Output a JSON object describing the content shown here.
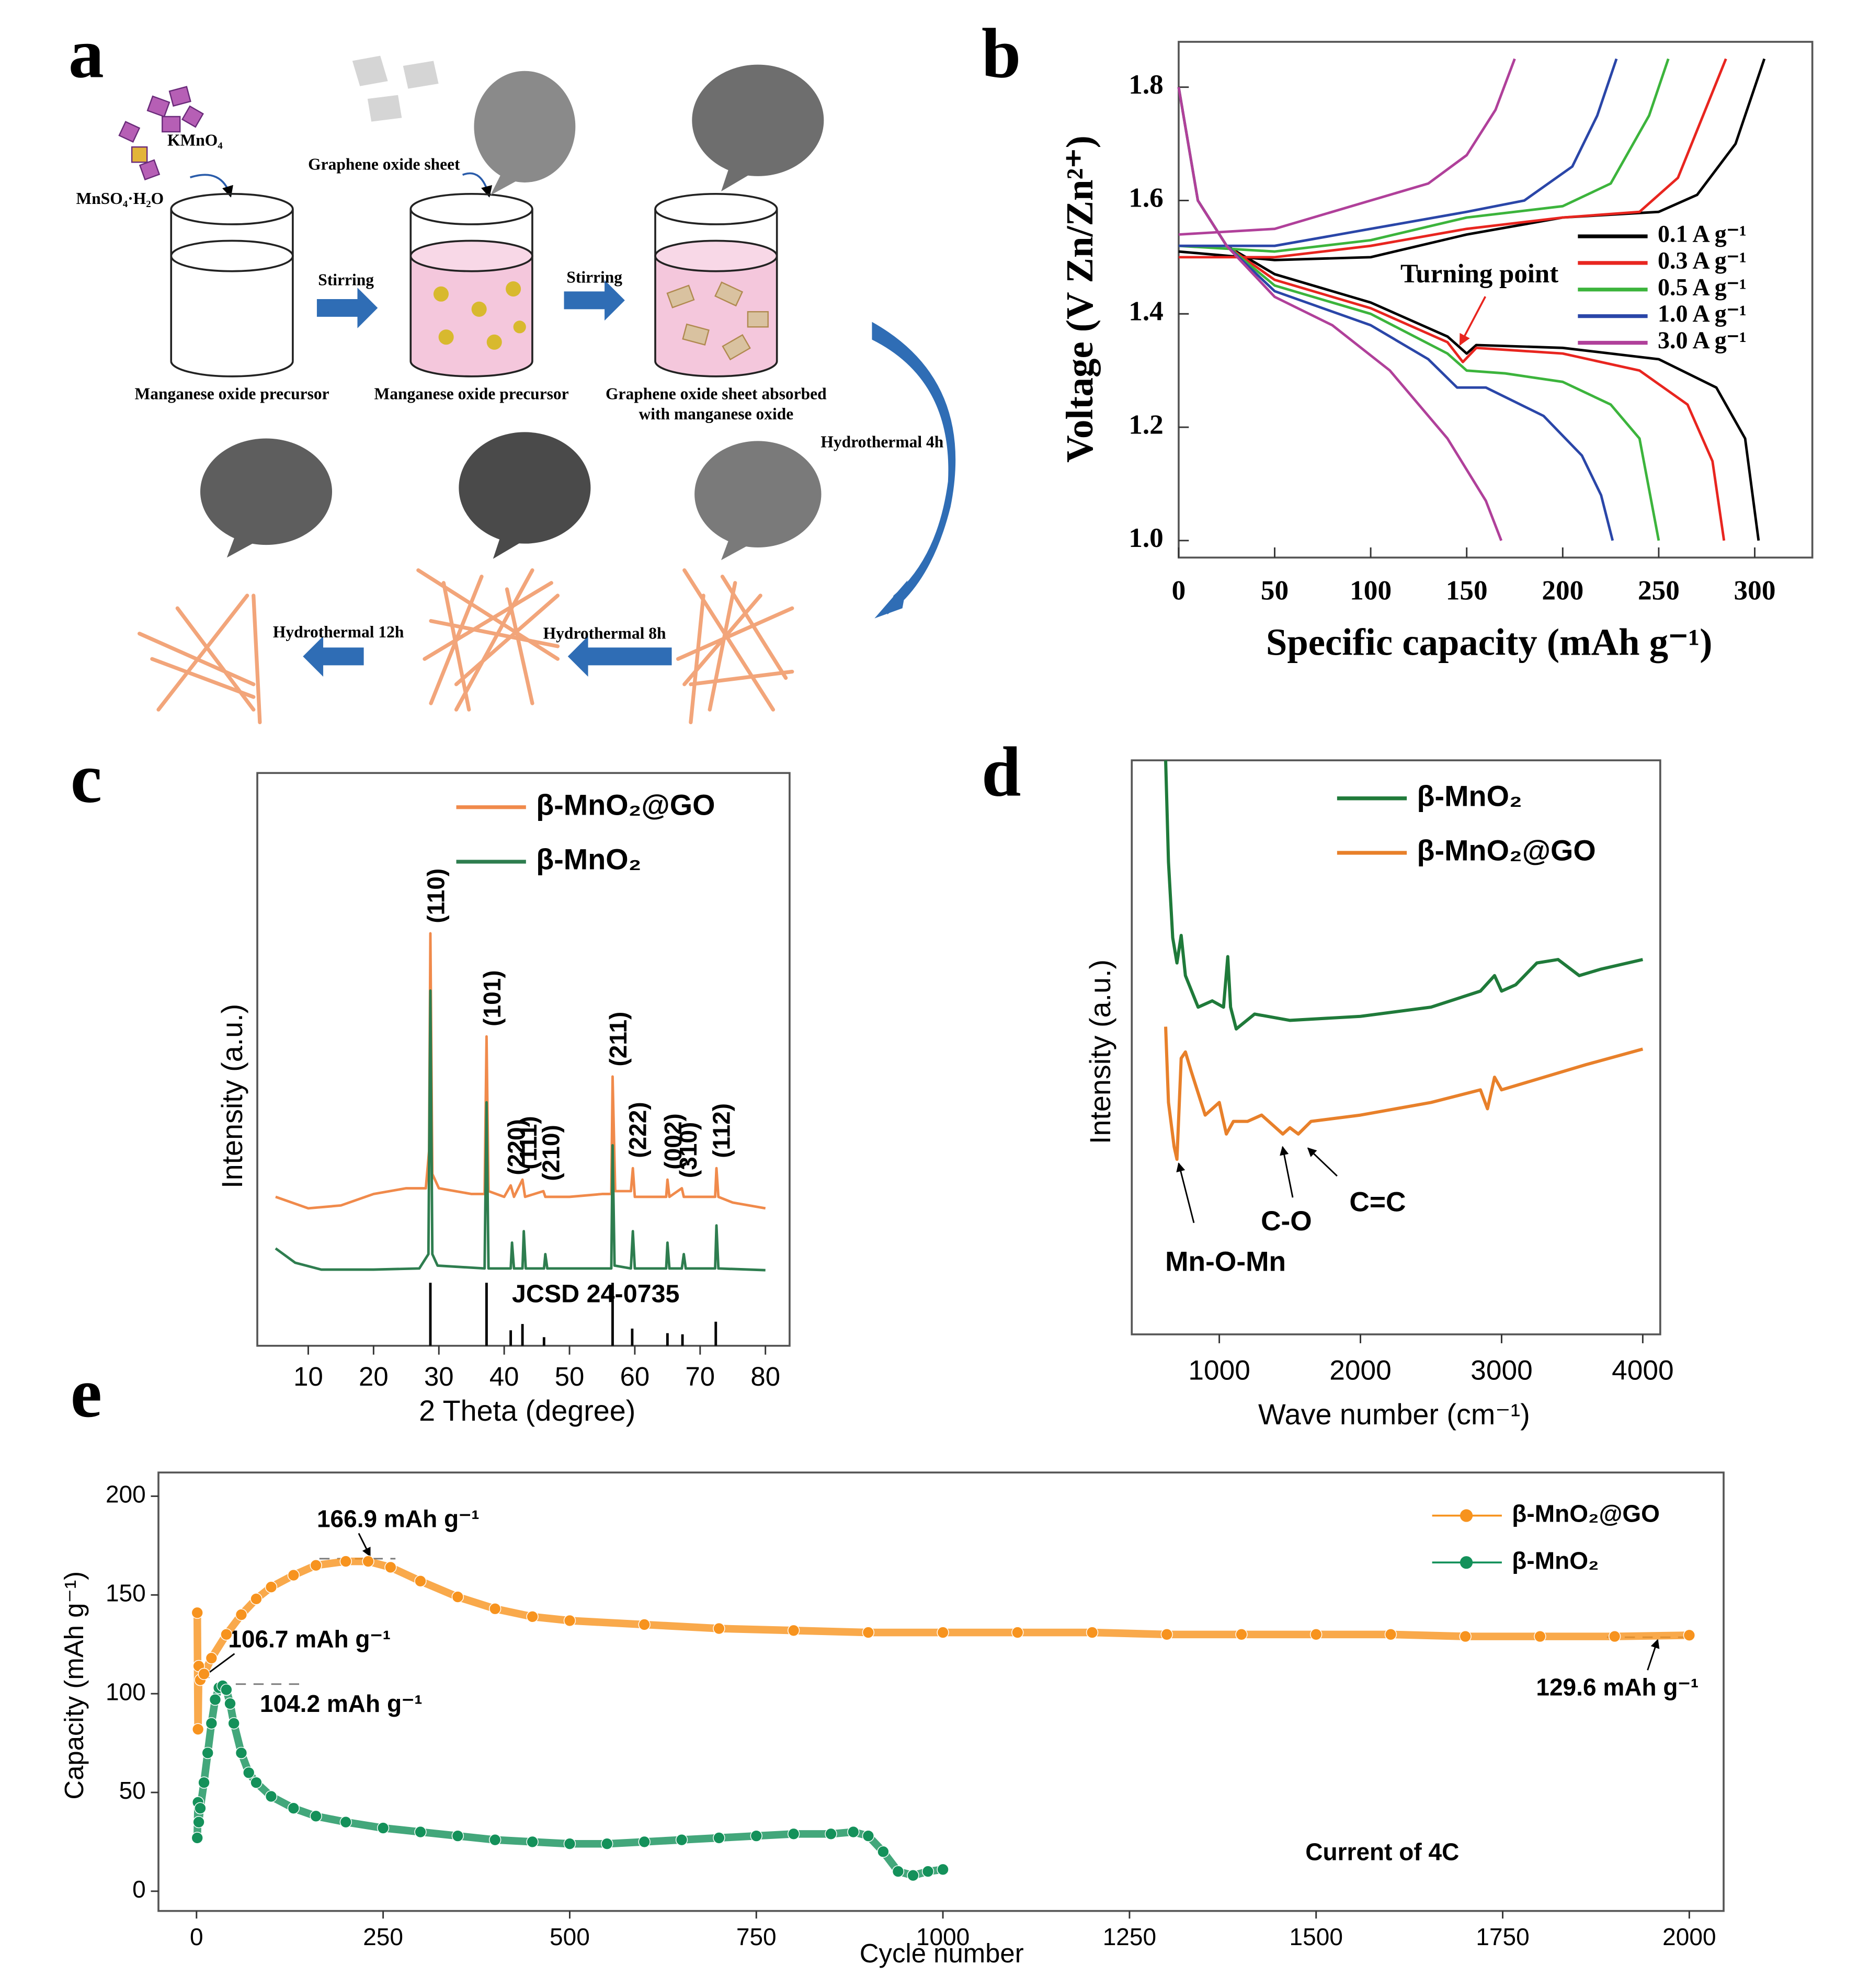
{
  "diagram": {
    "panel_label": "a",
    "reagents": [
      "KMnO₄",
      "MnSO₄·H₂O"
    ],
    "graphene_label": "Graphene oxide sheet",
    "steps": [
      "Stirring",
      "Stirring",
      "Hydrothermal 4h",
      "Hydrothermal 8h",
      "Hydrothermal 12h"
    ],
    "stages": [
      "Manganese oxide precursor",
      "Manganese oxide precursor",
      [
        "Graphene oxide sheet absorbed",
        "with manganese oxide"
      ]
    ]
  },
  "chart_data": [
    {
      "type": "line",
      "panel_label": "b",
      "xlabel": "Specific capacity (mAh g⁻¹)",
      "ylabel": "Voltage (V Zn/Zn²⁺)",
      "annotation": "Turning point",
      "xlim": [
        0,
        330
      ],
      "ylim": [
        0.97,
        1.88
      ],
      "xticks": [
        0,
        50,
        100,
        150,
        200,
        250,
        300
      ],
      "yticks": [
        {
          "value": 1,
          "label": "1.0"
        },
        1.2,
        1.4,
        1.6,
        1.8
      ],
      "legend": "center right",
      "grid": false,
      "series": [
        {
          "name": "0.1 A g⁻¹",
          "color": "#000000",
          "discharge_x": [
            0,
            10,
            25,
            50,
            100,
            140,
            150,
            155,
            200,
            250,
            280,
            295,
            302
          ],
          "discharge_values": [
            1.8,
            1.6,
            1.52,
            1.47,
            1.42,
            1.36,
            1.33,
            1.345,
            1.34,
            1.32,
            1.27,
            1.18,
            1.0
          ],
          "charge_x": [
            0,
            50,
            100,
            150,
            200,
            250,
            270,
            290,
            305
          ],
          "charge_values": [
            1.51,
            1.495,
            1.5,
            1.54,
            1.57,
            1.58,
            1.61,
            1.7,
            1.85
          ]
        },
        {
          "name": "0.3 A g⁻¹",
          "color": "#e8251f",
          "discharge_x": [
            0,
            10,
            25,
            50,
            100,
            140,
            148,
            155,
            200,
            240,
            265,
            278,
            284
          ],
          "discharge_values": [
            1.8,
            1.6,
            1.52,
            1.46,
            1.41,
            1.35,
            1.315,
            1.34,
            1.33,
            1.3,
            1.24,
            1.14,
            1.0
          ],
          "charge_x": [
            0,
            50,
            100,
            150,
            200,
            240,
            260,
            285
          ],
          "charge_values": [
            1.5,
            1.5,
            1.52,
            1.55,
            1.57,
            1.58,
            1.64,
            1.85
          ]
        },
        {
          "name": "0.5 A g⁻¹",
          "color": "#3cb43c",
          "discharge_x": [
            0,
            10,
            25,
            50,
            100,
            140,
            150,
            170,
            200,
            225,
            240,
            250
          ],
          "discharge_values": [
            1.8,
            1.6,
            1.52,
            1.45,
            1.4,
            1.33,
            1.3,
            1.295,
            1.28,
            1.24,
            1.18,
            1.0
          ],
          "charge_x": [
            0,
            50,
            100,
            150,
            200,
            225,
            245,
            255
          ],
          "charge_values": [
            1.52,
            1.51,
            1.53,
            1.57,
            1.59,
            1.63,
            1.75,
            1.85
          ]
        },
        {
          "name": "1.0 A g⁻¹",
          "color": "#2a46a8",
          "discharge_x": [
            0,
            10,
            25,
            50,
            100,
            130,
            145,
            160,
            190,
            210,
            220,
            226
          ],
          "discharge_values": [
            1.8,
            1.6,
            1.52,
            1.44,
            1.38,
            1.32,
            1.27,
            1.27,
            1.22,
            1.15,
            1.08,
            1.0
          ],
          "charge_x": [
            0,
            50,
            100,
            150,
            180,
            205,
            218,
            228
          ],
          "charge_values": [
            1.52,
            1.52,
            1.55,
            1.58,
            1.6,
            1.66,
            1.75,
            1.85
          ]
        },
        {
          "name": "3.0 A g⁻¹",
          "color": "#b0409a",
          "discharge_x": [
            0,
            10,
            25,
            50,
            80,
            110,
            140,
            160,
            168
          ],
          "discharge_values": [
            1.8,
            1.6,
            1.52,
            1.43,
            1.38,
            1.3,
            1.18,
            1.07,
            1.0
          ],
          "charge_x": [
            0,
            50,
            100,
            130,
            150,
            165,
            175
          ],
          "charge_values": [
            1.54,
            1.55,
            1.6,
            1.63,
            1.68,
            1.76,
            1.85
          ]
        }
      ]
    },
    {
      "type": "line",
      "panel_label": "c",
      "xlabel": "2 Theta (degree)",
      "ylabel": "Intensity (a.u.)",
      "xlim": [
        2.2,
        83.7
      ],
      "ylim": [
        0,
        100
      ],
      "xticks": [
        10,
        20,
        30,
        40,
        50,
        60,
        70,
        80
      ],
      "legend": "upper left",
      "grid": false,
      "series": [
        {
          "name": "β-MnO₂@GO",
          "color": "#f08a4b",
          "x": [
            5,
            10,
            15,
            20,
            25,
            28,
            28.5,
            28.7,
            29,
            30,
            35,
            37,
            37.3,
            37.6,
            40,
            41,
            41.5,
            42.8,
            43.2,
            46,
            46.3,
            50,
            55,
            56.4,
            56.6,
            57,
            59.4,
            59.7,
            60,
            64.8,
            65,
            65.3,
            67.2,
            67.5,
            72.3,
            72.5,
            72.8,
            75,
            80
          ],
          "values": [
            26,
            24,
            24.5,
            26.5,
            27.5,
            27.5,
            34,
            72,
            30,
            27.5,
            26.5,
            26.5,
            54,
            27,
            26,
            28,
            26,
            29,
            26,
            27,
            26,
            26,
            26.5,
            26.5,
            47,
            27,
            27,
            31,
            26,
            26,
            29,
            26,
            27.5,
            26,
            26,
            31,
            26,
            25,
            24
          ]
        },
        {
          "name": "β-MnO₂",
          "color": "#2e7d4f",
          "x": [
            5,
            8,
            12,
            20,
            27,
            28.4,
            28.7,
            29,
            29.8,
            37,
            37.3,
            37.6,
            41,
            41.2,
            41.5,
            42.8,
            43,
            43.3,
            46.1,
            46.3,
            46.6,
            56.4,
            56.6,
            56.9,
            59.4,
            59.7,
            60,
            64.8,
            65,
            65.3,
            67.2,
            67.5,
            67.8,
            72.3,
            72.5,
            72.8,
            80
          ],
          "values": [
            17,
            14.5,
            13.3,
            13.3,
            13.5,
            16,
            62,
            16,
            14,
            13.5,
            42.5,
            13.5,
            13.5,
            18,
            13.5,
            13.5,
            20,
            13.5,
            13.5,
            16,
            13.5,
            13.5,
            35,
            14,
            13.5,
            20,
            13.5,
            13.5,
            18,
            13.5,
            13.5,
            16,
            13.5,
            13.5,
            21,
            13.5,
            13.2
          ]
        }
      ],
      "reference": {
        "name": "JCSD 24-0735",
        "color": "#000000",
        "x": [
          28.7,
          37.3,
          41,
          42.8,
          46.1,
          56.6,
          59.6,
          65,
          67.3,
          72.4
        ],
        "values": [
          11,
          11,
          2.7,
          3.8,
          1.5,
          11,
          3,
          2.2,
          2,
          4.2
        ]
      },
      "peak_labels": [
        {
          "text": "(110)",
          "x": 28.7
        },
        {
          "text": "(101)",
          "x": 37.3
        },
        {
          "text": "(220)",
          "x": 41
        },
        {
          "text": "(111)",
          "x": 42.8
        },
        {
          "text": "(210)",
          "x": 46.3
        },
        {
          "text": "(211)",
          "x": 56.6
        },
        {
          "text": "(222)",
          "x": 59.6
        },
        {
          "text": "(002)",
          "x": 65
        },
        {
          "text": "(310)",
          "x": 67.3
        },
        {
          "text": "(112)",
          "x": 72.4
        }
      ]
    },
    {
      "type": "line",
      "panel_label": "d",
      "xlabel": "Wave number (cm⁻¹)",
      "ylabel": "Intensity (a.u.)",
      "xlim": [
        380,
        4124
      ],
      "ylim": [
        0,
        100
      ],
      "xticks": [
        1000,
        2000,
        3000,
        4000
      ],
      "legend": "upper left",
      "grid": false,
      "annotations": [
        "Mn-O-Mn",
        "C-O",
        "C=C"
      ],
      "series": [
        {
          "name": "β-MnO₂",
          "color": "#1f7a3a",
          "x": [
            620,
            640,
            670,
            700,
            730,
            760,
            850,
            950,
            1030,
            1060,
            1080,
            1120,
            1250,
            1500,
            2000,
            2500,
            2850,
            2950,
            3000,
            3100,
            3250,
            3400,
            3550,
            3700,
            4000
          ],
          "values": [
            100,
            82.3,
            69.1,
            64.7,
            69.5,
            62.5,
            57,
            58.1,
            57,
            65.8,
            57,
            53.2,
            55.8,
            54.7,
            55.4,
            57,
            59.8,
            62.5,
            59.8,
            60.9,
            64.7,
            65.3,
            62.5,
            63.6,
            65.3
          ]
        },
        {
          "name": "β-MnO₂@GO",
          "color": "#e8802a",
          "x": [
            620,
            640,
            680,
            700,
            730,
            760,
            800,
            900,
            1000,
            1050,
            1100,
            1200,
            1300,
            1450,
            1500,
            1560,
            1650,
            2000,
            2500,
            2850,
            2900,
            2950,
            3000,
            3300,
            3600,
            4000
          ],
          "values": [
            53.6,
            40.4,
            32.7,
            30.5,
            48.1,
            49.2,
            45.9,
            38.2,
            40.4,
            34.9,
            37.1,
            37.1,
            38.2,
            34.9,
            36,
            34.9,
            37.1,
            38.2,
            40.4,
            42.6,
            39.3,
            44.8,
            42.6,
            44.8,
            47,
            49.7
          ]
        }
      ]
    },
    {
      "type": "scatter",
      "panel_label": "e",
      "xlabel": "Cycle number",
      "ylabel": "Capacity (mAh g⁻¹)",
      "xlim": [
        -51,
        2046
      ],
      "ylim": [
        -10,
        212
      ],
      "xticks": [
        0,
        250,
        500,
        750,
        1000,
        1250,
        1500,
        1750,
        2000
      ],
      "yticks": [
        0,
        50,
        100,
        150,
        200
      ],
      "legend": "upper right",
      "grid": false,
      "annotations": [
        "166.9 mAh g⁻¹",
        "106.7 mAh g⁻¹",
        "104.2 mAh g⁻¹",
        "129.6 mAh g⁻¹",
        "Current of 4C"
      ],
      "series": [
        {
          "name": "β-MnO₂@GO",
          "color": "#f7931e",
          "x": [
            1,
            2,
            3,
            5,
            10,
            20,
            40,
            60,
            80,
            100,
            130,
            160,
            200,
            230,
            260,
            300,
            350,
            400,
            450,
            500,
            600,
            700,
            800,
            900,
            1000,
            1100,
            1200,
            1300,
            1400,
            1500,
            1600,
            1700,
            1800,
            1900,
            2000
          ],
          "values": [
            141,
            82,
            114,
            107,
            110,
            118,
            130,
            140,
            148,
            154,
            160,
            165,
            167,
            167,
            164,
            157,
            149,
            143,
            139,
            137,
            135,
            133,
            132,
            131,
            131,
            131,
            131,
            130,
            130,
            130,
            130,
            129,
            129,
            129,
            129.6
          ]
        },
        {
          "name": "β-MnO₂",
          "color": "#14915a",
          "x": [
            1,
            2,
            3,
            5,
            10,
            15,
            20,
            25,
            30,
            35,
            40,
            45,
            50,
            60,
            70,
            80,
            100,
            130,
            160,
            200,
            250,
            300,
            350,
            400,
            450,
            500,
            550,
            600,
            650,
            700,
            750,
            800,
            850,
            880,
            900,
            920,
            940,
            960,
            980,
            1000
          ],
          "values": [
            27,
            45,
            35,
            42,
            55,
            70,
            85,
            97,
            103,
            104,
            102,
            95,
            85,
            70,
            60,
            55,
            48,
            42,
            38,
            35,
            32,
            30,
            28,
            26,
            25,
            24,
            24,
            25,
            26,
            27,
            28,
            29,
            29,
            30,
            28,
            20,
            10,
            8,
            10,
            11
          ]
        }
      ]
    }
  ]
}
